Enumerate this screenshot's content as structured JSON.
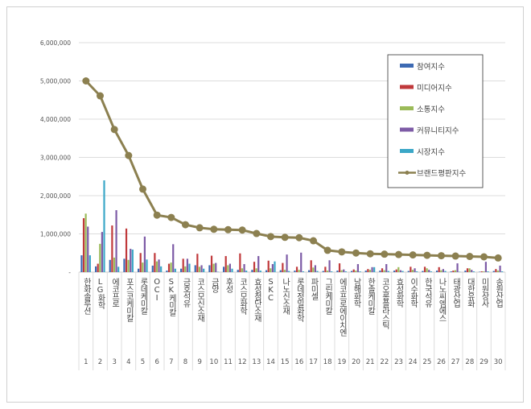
{
  "chart_data": {
    "type": "bar+line",
    "title": "",
    "xlabel": "",
    "ylabel": "",
    "ylim": [
      0,
      6000000
    ],
    "yticks": [
      "-",
      "1,000,000",
      "2,000,000",
      "3,000,000",
      "4,000,000",
      "5,000,000",
      "6,000,000"
    ],
    "grid": true,
    "legend_position": "top-right",
    "categories": [
      "한화솔루션",
      "LG화학",
      "에코프로",
      "포스코케미칼",
      "롯데케미칼",
      "OCI",
      "SK케미칼",
      "금호석유",
      "코스모신소재",
      "금양",
      "후성",
      "코스모화학",
      "효성첨단소재",
      "SKC",
      "나노신소재",
      "롯데정밀화학",
      "파미셀",
      "그린케미칼",
      "에코프로에이치엔",
      "남해화학",
      "한솔케미칼",
      "코오롱플라스틱",
      "효성화학",
      "이수화학",
      "한국석유",
      "나노씨엠에스",
      "태광산업",
      "대한유화",
      "미원상사",
      "송원산업"
    ],
    "ranks": [
      "1",
      "2",
      "3",
      "4",
      "5",
      "6",
      "7",
      "8",
      "9",
      "10",
      "11",
      "12",
      "13",
      "14",
      "15",
      "16",
      "17",
      "18",
      "19",
      "20",
      "21",
      "22",
      "23",
      "24",
      "25",
      "26",
      "27",
      "28",
      "29",
      "30"
    ],
    "series": [
      {
        "name": "참여지수",
        "kind": "bar",
        "color": "#3d6ab3",
        "values": [
          440000,
          150000,
          320000,
          350000,
          90000,
          170000,
          40000,
          90000,
          180000,
          180000,
          140000,
          60000,
          60000,
          50000,
          50000,
          40000,
          50000,
          30000,
          40000,
          30000,
          40000,
          40000,
          40000,
          30000,
          30000,
          40000,
          20000,
          40000,
          10000,
          30000
        ]
      },
      {
        "name": "미디어지수",
        "kind": "bar",
        "color": "#c0393b",
        "values": [
          1410000,
          220000,
          1220000,
          1140000,
          500000,
          500000,
          220000,
          350000,
          480000,
          430000,
          420000,
          490000,
          270000,
          300000,
          240000,
          140000,
          310000,
          140000,
          230000,
          70000,
          80000,
          100000,
          70000,
          140000,
          140000,
          130000,
          40000,
          100000,
          20000,
          80000
        ]
      },
      {
        "name": "소통지수",
        "kind": "bar",
        "color": "#9bbb59",
        "values": [
          1530000,
          740000,
          380000,
          320000,
          250000,
          280000,
          250000,
          150000,
          140000,
          220000,
          180000,
          100000,
          100000,
          100000,
          60000,
          60000,
          120000,
          40000,
          50000,
          40000,
          60000,
          50000,
          130000,
          60000,
          100000,
          50000,
          50000,
          100000,
          20000,
          40000
        ]
      },
      {
        "name": "커뮤니티지수",
        "kind": "bar",
        "color": "#7d5ba6",
        "values": [
          1190000,
          1050000,
          1620000,
          610000,
          930000,
          330000,
          730000,
          350000,
          180000,
          240000,
          220000,
          210000,
          420000,
          210000,
          460000,
          510000,
          180000,
          310000,
          70000,
          210000,
          130000,
          210000,
          50000,
          100000,
          60000,
          80000,
          230000,
          60000,
          270000,
          170000
        ]
      },
      {
        "name": "시장지수",
        "kind": "bar",
        "color": "#3ba7c7",
        "values": [
          440000,
          2400000,
          140000,
          590000,
          330000,
          150000,
          90000,
          220000,
          90000,
          10000,
          90000,
          40000,
          40000,
          280000,
          30000,
          20000,
          30000,
          20000,
          20000,
          20000,
          130000,
          30000,
          30000,
          20000,
          20000,
          30000,
          10000,
          20000,
          20000,
          20000
        ]
      },
      {
        "name": "브랜드평판지수",
        "kind": "line",
        "color": "#8c8050",
        "values": [
          5000000,
          4610000,
          3730000,
          3050000,
          2170000,
          1490000,
          1430000,
          1240000,
          1160000,
          1120000,
          1110000,
          1100000,
          1010000,
          930000,
          910000,
          900000,
          820000,
          570000,
          530000,
          500000,
          480000,
          470000,
          460000,
          450000,
          440000,
          430000,
          420000,
          410000,
          400000,
          370000
        ]
      }
    ]
  }
}
